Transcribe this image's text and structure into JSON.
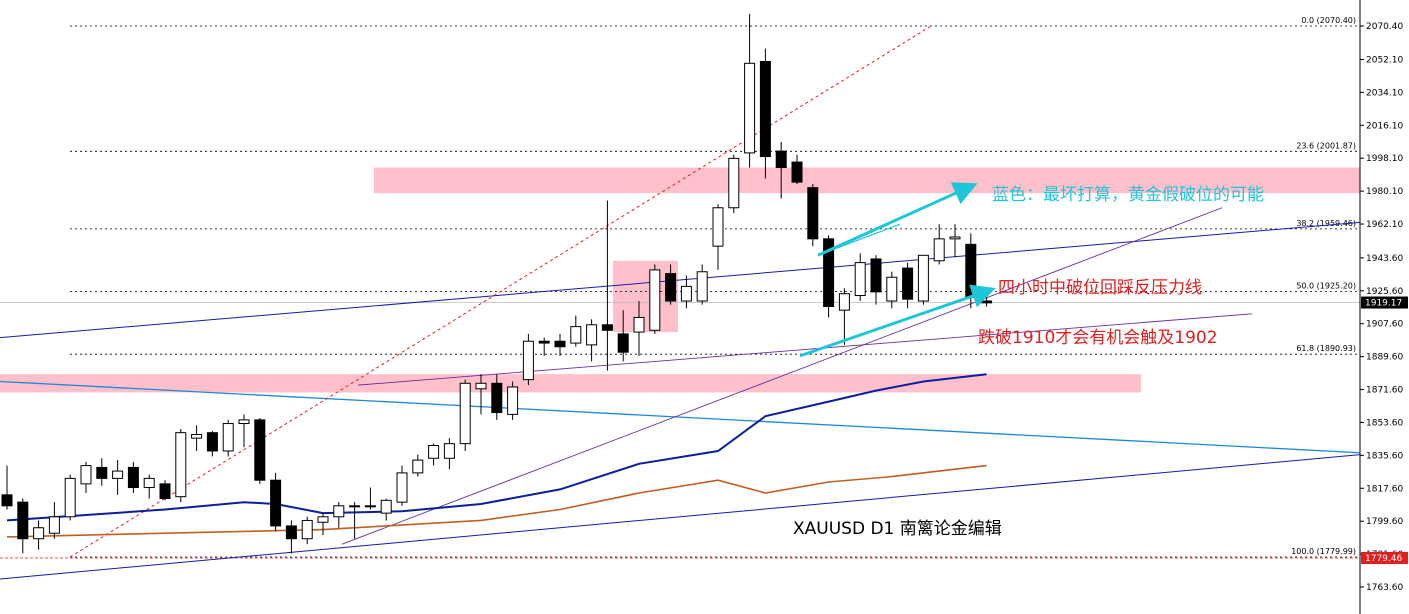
{
  "chart_data": {
    "type": "candlestick",
    "symbol_label": "XAUUSD  D1  南篱论金编辑",
    "ylim": [
      1754,
      2080
    ],
    "y_ticks": [
      "2070.40",
      "2052.10",
      "2034.10",
      "2016.10",
      "1998.10",
      "1980.10",
      "1962.10",
      "1943.60",
      "1925.60",
      "1907.60",
      "1889.60",
      "1871.60",
      "1853.60",
      "1835.60",
      "1817.60",
      "1799.60",
      "1781.60",
      "1763.60"
    ],
    "current_price": "1919.17",
    "low_price_label": "1779.46",
    "candles": [
      {
        "o": 1814,
        "h": 1830,
        "l": 1806,
        "c": 1808
      },
      {
        "o": 1810,
        "h": 1812,
        "l": 1782,
        "c": 1790
      },
      {
        "o": 1790,
        "h": 1800,
        "l": 1784,
        "c": 1796
      },
      {
        "o": 1793,
        "h": 1810,
        "l": 1790,
        "c": 1802
      },
      {
        "o": 1802,
        "h": 1825,
        "l": 1800,
        "c": 1823
      },
      {
        "o": 1820,
        "h": 1832,
        "l": 1815,
        "c": 1830
      },
      {
        "o": 1829,
        "h": 1834,
        "l": 1819,
        "c": 1823
      },
      {
        "o": 1823,
        "h": 1833,
        "l": 1814,
        "c": 1827
      },
      {
        "o": 1829,
        "h": 1832,
        "l": 1815,
        "c": 1818
      },
      {
        "o": 1818,
        "h": 1825,
        "l": 1812,
        "c": 1823
      },
      {
        "o": 1820,
        "h": 1822,
        "l": 1811,
        "c": 1812
      },
      {
        "o": 1813,
        "h": 1850,
        "l": 1810,
        "c": 1848
      },
      {
        "o": 1845,
        "h": 1852,
        "l": 1838,
        "c": 1847
      },
      {
        "o": 1848,
        "h": 1849,
        "l": 1835,
        "c": 1838
      },
      {
        "o": 1838,
        "h": 1855,
        "l": 1835,
        "c": 1853
      },
      {
        "o": 1853,
        "h": 1858,
        "l": 1840,
        "c": 1855
      },
      {
        "o": 1855,
        "h": 1856,
        "l": 1820,
        "c": 1822
      },
      {
        "o": 1822,
        "h": 1826,
        "l": 1794,
        "c": 1797
      },
      {
        "o": 1797,
        "h": 1800,
        "l": 1782,
        "c": 1790
      },
      {
        "o": 1790,
        "h": 1802,
        "l": 1787,
        "c": 1800
      },
      {
        "o": 1799,
        "h": 1804,
        "l": 1792,
        "c": 1802
      },
      {
        "o": 1802,
        "h": 1810,
        "l": 1796,
        "c": 1808
      },
      {
        "o": 1808,
        "h": 1810,
        "l": 1790,
        "c": 1808
      },
      {
        "o": 1808,
        "h": 1818,
        "l": 1806,
        "c": 1808
      },
      {
        "o": 1804,
        "h": 1812,
        "l": 1800,
        "c": 1811
      },
      {
        "o": 1810,
        "h": 1830,
        "l": 1808,
        "c": 1826
      },
      {
        "o": 1826,
        "h": 1836,
        "l": 1824,
        "c": 1833
      },
      {
        "o": 1834,
        "h": 1842,
        "l": 1830,
        "c": 1841
      },
      {
        "o": 1834,
        "h": 1845,
        "l": 1828,
        "c": 1842
      },
      {
        "o": 1842,
        "h": 1877,
        "l": 1838,
        "c": 1875
      },
      {
        "o": 1872,
        "h": 1880,
        "l": 1858,
        "c": 1875
      },
      {
        "o": 1875,
        "h": 1880,
        "l": 1855,
        "c": 1859
      },
      {
        "o": 1858,
        "h": 1876,
        "l": 1855,
        "c": 1873
      },
      {
        "o": 1877,
        "h": 1902,
        "l": 1874,
        "c": 1898
      },
      {
        "o": 1898,
        "h": 1900,
        "l": 1890,
        "c": 1897
      },
      {
        "o": 1898,
        "h": 1902,
        "l": 1890,
        "c": 1895
      },
      {
        "o": 1897,
        "h": 1912,
        "l": 1895,
        "c": 1906
      },
      {
        "o": 1896,
        "h": 1910,
        "l": 1887,
        "c": 1907
      },
      {
        "o": 1907,
        "h": 1975,
        "l": 1882,
        "c": 1904
      },
      {
        "o": 1902,
        "h": 1915,
        "l": 1887,
        "c": 1892
      },
      {
        "o": 1903,
        "h": 1920,
        "l": 1890,
        "c": 1911
      },
      {
        "o": 1904,
        "h": 1940,
        "l": 1902,
        "c": 1937
      },
      {
        "o": 1935,
        "h": 1940,
        "l": 1918,
        "c": 1920
      },
      {
        "o": 1920,
        "h": 1934,
        "l": 1916,
        "c": 1928
      },
      {
        "o": 1920,
        "h": 1940,
        "l": 1918,
        "c": 1936
      },
      {
        "o": 1950,
        "h": 1973,
        "l": 1937,
        "c": 1971
      },
      {
        "o": 1971,
        "h": 2000,
        "l": 1968,
        "c": 1998
      },
      {
        "o": 2001,
        "h": 2077,
        "l": 1993,
        "c": 2050
      },
      {
        "o": 2051,
        "h": 2058,
        "l": 1987,
        "c": 1999
      },
      {
        "o": 2002,
        "h": 2007,
        "l": 1976,
        "c": 1993
      },
      {
        "o": 1996,
        "h": 2000,
        "l": 1984,
        "c": 1985
      },
      {
        "o": 1982,
        "h": 1984,
        "l": 1950,
        "c": 1954
      },
      {
        "o": 1954,
        "h": 1956,
        "l": 1911,
        "c": 1917
      },
      {
        "o": 1915,
        "h": 1927,
        "l": 1896,
        "c": 1924
      },
      {
        "o": 1923,
        "h": 1946,
        "l": 1920,
        "c": 1941
      },
      {
        "o": 1943,
        "h": 1945,
        "l": 1918,
        "c": 1925
      },
      {
        "o": 1920,
        "h": 1936,
        "l": 1916,
        "c": 1933
      },
      {
        "o": 1938,
        "h": 1941,
        "l": 1916,
        "c": 1921
      },
      {
        "o": 1920,
        "h": 1945,
        "l": 1918,
        "c": 1945
      },
      {
        "o": 1942,
        "h": 1962,
        "l": 1940,
        "c": 1954
      },
      {
        "o": 1954,
        "h": 1962,
        "l": 1944,
        "c": 1955
      },
      {
        "o": 1951,
        "h": 1957,
        "l": 1916,
        "c": 1922
      },
      {
        "o": 1920,
        "h": 1925,
        "l": 1917,
        "c": 1919
      }
    ],
    "fib_levels": [
      {
        "label": "0.0 (2070.40)",
        "price": 2070.4
      },
      {
        "label": "23.6 (2001.87)",
        "price": 2001.87
      },
      {
        "label": "38.2 (1959.46)",
        "price": 1959.46
      },
      {
        "label": "50.0 (1925.20)",
        "price": 1925.2
      },
      {
        "label": "61.8 (1890.93)",
        "price": 1890.93
      },
      {
        "label": "100.0 (1779.99)",
        "price": 1779.99
      }
    ],
    "moving_averages": [
      {
        "color": "#0a1f9e",
        "points": [
          [
            0,
            1800
          ],
          [
            5,
            1803
          ],
          [
            10,
            1806
          ],
          [
            15,
            1810
          ],
          [
            17,
            1809
          ],
          [
            20,
            1804
          ],
          [
            25,
            1805
          ],
          [
            30,
            1809
          ],
          [
            35,
            1817
          ],
          [
            40,
            1831
          ],
          [
            45,
            1838
          ],
          [
            48,
            1857
          ],
          [
            52,
            1865
          ],
          [
            55,
            1871
          ],
          [
            58,
            1876
          ],
          [
            62,
            1880
          ]
        ]
      },
      {
        "color": "#c06020",
        "points": [
          [
            0,
            1791
          ],
          [
            10,
            1793
          ],
          [
            20,
            1795
          ],
          [
            30,
            1800
          ],
          [
            35,
            1806
          ],
          [
            40,
            1815
          ],
          [
            45,
            1822
          ],
          [
            48,
            1815
          ],
          [
            52,
            1821
          ],
          [
            56,
            1824
          ],
          [
            60,
            1828
          ],
          [
            62,
            1830
          ]
        ]
      }
    ],
    "annotations": [
      {
        "text": "蓝色：最坏打算，黄金假破位的可能",
        "color": "#1fc6d8"
      },
      {
        "text": "四小时中破位回踩反压力线",
        "color": "#e02020"
      },
      {
        "text": "跌破1910才会有机会触及1902",
        "color": "#e02020"
      }
    ],
    "colors": {
      "bull_fill": "#ffffff",
      "bear_fill": "#000000",
      "zone": "#ffc0cb",
      "trend_blue": "#1a1aa8",
      "trend_purple": "#6a2c9e",
      "mid_blue": "#1e88d8",
      "cyan_arrow": "#1fc6d8",
      "red_dash": "#e02020"
    }
  }
}
